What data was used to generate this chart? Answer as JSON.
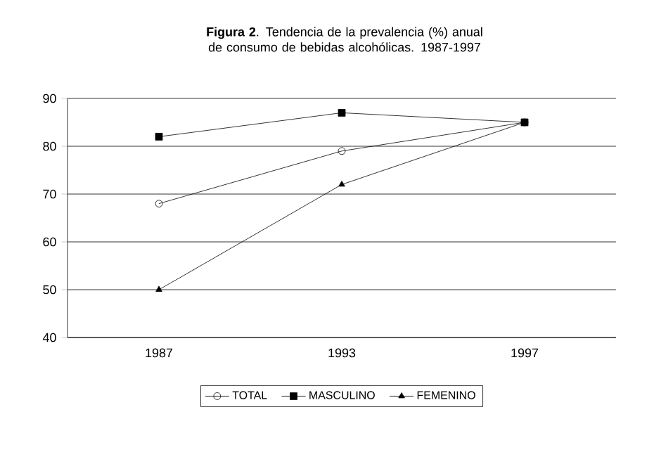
{
  "chart_data": {
    "type": "line",
    "title": "**Figura 2**. Tendencia de la prevalencia (%) anual de consumo de bebidas alcohólicas. 1987-1997",
    "categories": [
      "1987",
      "1993",
      "1997"
    ],
    "series": [
      {
        "name": "TOTAL",
        "color": "#000000",
        "marker": "circle",
        "values": [
          68,
          79,
          85
        ]
      },
      {
        "name": "MASCULINO",
        "color": "#000000",
        "marker": "square",
        "values": [
          82,
          87,
          85
        ]
      },
      {
        "name": "FEMENINO",
        "color": "#000000",
        "marker": "triangle",
        "values": [
          50,
          72,
          85
        ]
      }
    ],
    "ylim": [
      40,
      90
    ],
    "yticks": [
      40,
      50,
      60,
      70,
      80,
      90
    ],
    "grid": "y",
    "legend": "bottom",
    "line_style": "solid"
  }
}
